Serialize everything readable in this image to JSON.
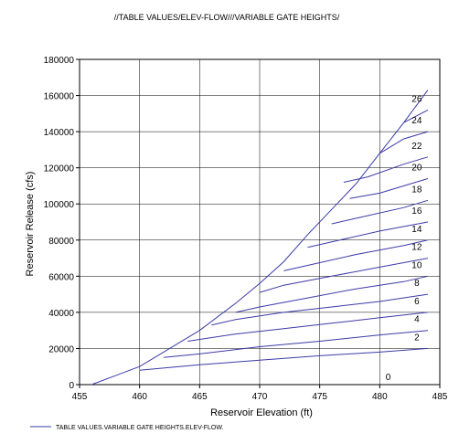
{
  "chart_data": {
    "type": "line",
    "title": "//TABLE VALUES/ELEV-FLOW///VARIABLE GATE HEIGHTS/",
    "xlabel": "Reservoir Elevation (ft)",
    "ylabel": "Reservoir Release (cfs)",
    "xlim": [
      455,
      485
    ],
    "ylim": [
      0,
      180000
    ],
    "xticks": [
      "455",
      "460",
      "465",
      "470",
      "475",
      "480",
      "485"
    ],
    "yticks": [
      "0",
      "20000",
      "40000",
      "60000",
      "80000",
      "100000",
      "120000",
      "140000",
      "160000",
      "180000"
    ],
    "grid": true,
    "legend_position": "bottom-left",
    "legend_label": "TABLE VALUES.VARIABLE GATE HEIGHTS.ELEV-FLOW.",
    "line_color": "#3b3ba8",
    "envelope": {
      "x": [
        456,
        460,
        462,
        465,
        468,
        470,
        472,
        474,
        476,
        478,
        480,
        482,
        484
      ],
      "y": [
        0,
        10000,
        18000,
        30000,
        45000,
        56000,
        68000,
        83000,
        97000,
        111000,
        128000,
        145000,
        163000
      ]
    },
    "gate_curves": [
      {
        "label": "0",
        "x": [
          480,
          484
        ],
        "y": [
          0,
          0
        ]
      },
      {
        "label": "2",
        "x": [
          460,
          465,
          470,
          475,
          480,
          484
        ],
        "y": [
          8000,
          11000,
          13500,
          16000,
          18000,
          20000
        ]
      },
      {
        "label": "4",
        "x": [
          462,
          465,
          470,
          475,
          480,
          484
        ],
        "y": [
          15000,
          17000,
          21000,
          24000,
          27500,
          30000
        ]
      },
      {
        "label": "6",
        "x": [
          464,
          468,
          472,
          476,
          480,
          484
        ],
        "y": [
          24000,
          28000,
          31000,
          34000,
          37000,
          40000
        ]
      },
      {
        "label": "8",
        "x": [
          466,
          468,
          472,
          476,
          480,
          484
        ],
        "y": [
          33000,
          36000,
          40000,
          43000,
          46000,
          50000
        ]
      },
      {
        "label": "10",
        "x": [
          468,
          470,
          474,
          478,
          482,
          484
        ],
        "y": [
          40000,
          43000,
          48000,
          53000,
          57000,
          60000
        ]
      },
      {
        "label": "12",
        "x": [
          470,
          472,
          476,
          480,
          484
        ],
        "y": [
          51000,
          55000,
          60000,
          65000,
          70000
        ]
      },
      {
        "label": "14",
        "x": [
          472,
          474,
          478,
          482,
          484
        ],
        "y": [
          63000,
          66000,
          72000,
          77000,
          80000
        ]
      },
      {
        "label": "16",
        "x": [
          474,
          476,
          480,
          484
        ],
        "y": [
          76000,
          79000,
          85000,
          90000
        ]
      },
      {
        "label": "18",
        "x": [
          476,
          478,
          482,
          484
        ],
        "y": [
          89000,
          92000,
          98000,
          102000
        ]
      },
      {
        "label": "20",
        "x": [
          477.5,
          480,
          484
        ],
        "y": [
          103000,
          106000,
          114000
        ]
      },
      {
        "label": "22",
        "x": [
          477,
          479,
          482,
          484
        ],
        "y": [
          112000,
          115000,
          122000,
          126000
        ]
      },
      {
        "label": "24",
        "x": [
          480,
          482,
          484
        ],
        "y": [
          128000,
          136000,
          140000
        ]
      },
      {
        "label": "26",
        "x": [
          482,
          484
        ],
        "y": [
          145000,
          152000
        ]
      }
    ]
  }
}
